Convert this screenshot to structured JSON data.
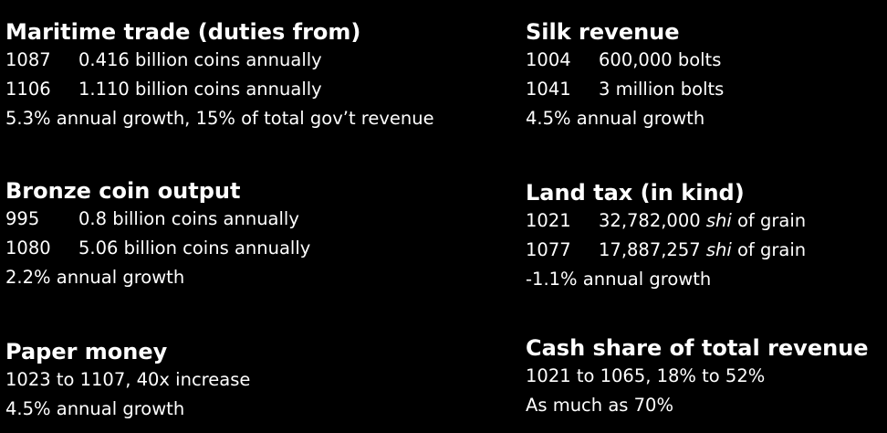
{
  "sections": [
    {
      "title": "Maritime trade (duties from)",
      "rows": [
        {
          "year": "1087",
          "value": "0.416 billion coins annually"
        },
        {
          "year": "1106",
          "value": "1.110 billion coins annually"
        }
      ],
      "note": "5.3% annual growth, 15% of total gov’t revenue"
    },
    {
      "title": "Silk revenue",
      "rows": [
        {
          "year": "1004",
          "value": "600,000 bolts"
        },
        {
          "year": "1041",
          "value": "3 million bolts"
        }
      ],
      "note": "4.5% annual growth"
    },
    {
      "title": "Bronze coin output",
      "rows": [
        {
          "year": "995",
          "value": "0.8 billion coins annually"
        },
        {
          "year": "1080",
          "value": "5.06 billion coins annually"
        }
      ],
      "note": "2.2% annual growth"
    },
    {
      "title": "Land tax (in kind)",
      "rows": [
        {
          "year": "1021",
          "value": "32,782,000",
          "unit": "shi",
          "suffix": "of grain"
        },
        {
          "year": "1077",
          "value": "17,887,257",
          "unit": "shi",
          "suffix": "of grain"
        }
      ],
      "note": "-1.1% annual growth"
    },
    {
      "title": "Paper money",
      "lines": [
        "1023 to 1107, 40x increase",
        "4.5% annual growth"
      ]
    },
    {
      "title": "Cash share of total revenue",
      "lines": [
        "1021 to 1065, 18% to 52%",
        "As much as 70%"
      ]
    }
  ]
}
